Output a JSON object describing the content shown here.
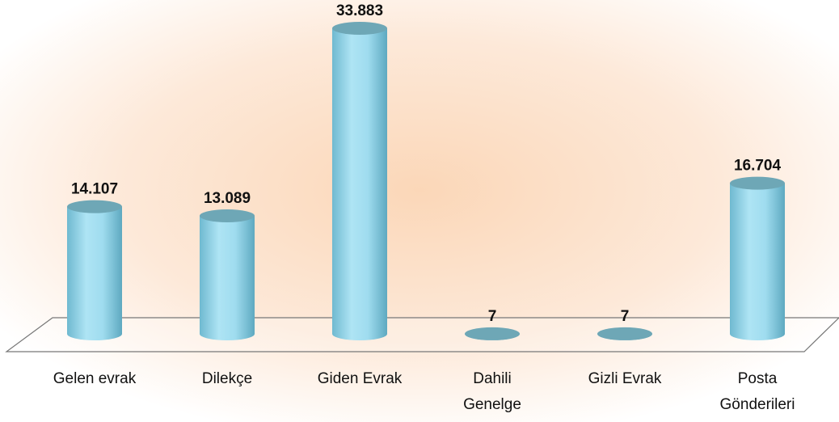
{
  "chart_data": {
    "type": "bar",
    "categories": [
      "Gelen evrak",
      "Dilekçe",
      "Giden Evrak",
      "Dahili\nGenelge",
      "Gizli Evrak",
      "Posta\nGönderileri"
    ],
    "values": [
      14107,
      13089,
      33883,
      7,
      7,
      16704
    ],
    "value_labels": [
      "14.107",
      "13.089",
      "33.883",
      "7",
      "7",
      "16.704"
    ],
    "color": "#9fdcef"
  }
}
